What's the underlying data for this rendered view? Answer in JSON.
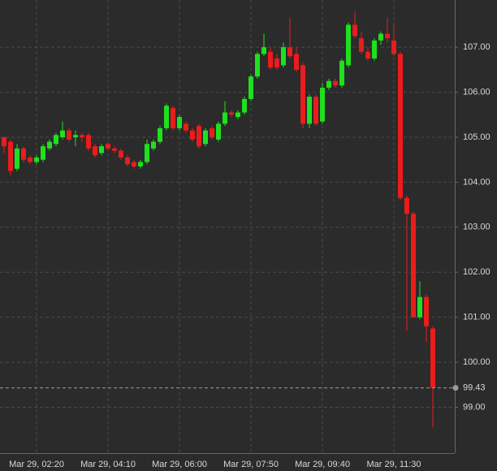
{
  "chart_data": {
    "type": "candlestick",
    "categories": [
      null,
      null,
      null,
      null,
      null,
      "Mar 29, 02:20",
      null,
      null,
      null,
      null,
      null,
      null,
      null,
      null,
      null,
      null,
      "Mar 29, 04:10",
      null,
      null,
      null,
      null,
      null,
      null,
      null,
      null,
      null,
      null,
      "Mar 29, 06:00",
      null,
      null,
      null,
      null,
      null,
      null,
      null,
      null,
      null,
      null,
      "Mar 29, 07:50",
      null,
      null,
      null,
      null,
      null,
      null,
      null,
      null,
      null,
      null,
      "Mar 29, 09:40",
      null,
      null,
      null,
      null,
      null,
      null,
      null,
      null,
      null,
      null,
      "Mar 29, 11:30",
      null,
      null,
      null,
      null,
      null,
      null
    ],
    "open": [
      105.0,
      104.9,
      104.3,
      104.75,
      104.55,
      104.45,
      104.5,
      104.75,
      104.85,
      105.0,
      105.15,
      105.0,
      105.05,
      105.05,
      104.8,
      104.65,
      104.85,
      104.75,
      104.7,
      104.55,
      104.45,
      104.35,
      104.45,
      104.75,
      104.9,
      105.2,
      105.65,
      105.2,
      105.3,
      105.15,
      105.25,
      104.85,
      105.2,
      104.95,
      105.3,
      105.55,
      105.45,
      105.55,
      105.85,
      106.35,
      106.85,
      106.9,
      106.75,
      106.6,
      107.0,
      106.85,
      106.6,
      105.3,
      105.9,
      105.35,
      106.1,
      106.25,
      106.15,
      106.6,
      107.5,
      107.2,
      106.9,
      106.75,
      107.15,
      107.3,
      107.15,
      106.85,
      103.65,
      103.3,
      101.0,
      101.45,
      100.75
    ],
    "high": [
      105.02,
      104.95,
      104.85,
      104.8,
      104.6,
      104.6,
      104.85,
      104.95,
      105.1,
      105.35,
      105.2,
      105.15,
      105.1,
      105.1,
      104.85,
      104.85,
      104.9,
      104.8,
      104.75,
      104.6,
      104.5,
      104.5,
      104.95,
      104.95,
      105.25,
      105.75,
      105.7,
      105.5,
      105.35,
      105.2,
      105.3,
      105.2,
      105.25,
      105.35,
      105.8,
      105.6,
      105.6,
      105.9,
      106.4,
      106.9,
      107.3,
      107.0,
      106.85,
      107.1,
      107.65,
      107.0,
      106.65,
      105.95,
      105.95,
      106.2,
      106.3,
      106.3,
      106.75,
      107.55,
      107.8,
      107.35,
      107.0,
      107.2,
      107.35,
      107.65,
      107.5,
      106.9,
      103.7,
      103.35,
      101.8,
      101.5,
      100.8
    ],
    "low": [
      104.65,
      104.15,
      104.25,
      104.45,
      104.4,
      104.4,
      104.45,
      104.7,
      104.8,
      104.95,
      104.9,
      104.8,
      104.9,
      104.7,
      104.55,
      104.6,
      104.7,
      104.65,
      104.5,
      104.35,
      104.3,
      104.3,
      104.4,
      104.7,
      104.85,
      105.15,
      105.15,
      105.15,
      105.1,
      104.9,
      104.75,
      104.8,
      104.95,
      104.9,
      105.25,
      105.45,
      105.4,
      105.5,
      105.8,
      106.3,
      106.8,
      106.5,
      106.5,
      106.55,
      106.75,
      106.45,
      105.2,
      105.2,
      105.25,
      105.3,
      106.05,
      106.1,
      106.1,
      106.55,
      107.2,
      106.85,
      106.7,
      106.7,
      107.05,
      107.1,
      106.8,
      103.6,
      100.7,
      101.0,
      100.95,
      100.45,
      98.55
    ],
    "close": [
      104.8,
      104.25,
      104.75,
      104.5,
      104.45,
      104.55,
      104.8,
      104.9,
      105.05,
      105.15,
      104.95,
      105.05,
      105.0,
      104.75,
      104.6,
      104.8,
      104.75,
      104.7,
      104.55,
      104.4,
      104.35,
      104.45,
      104.85,
      104.9,
      105.2,
      105.7,
      105.2,
      105.45,
      105.15,
      104.95,
      104.8,
      105.15,
      105.0,
      105.3,
      105.55,
      105.5,
      105.55,
      105.85,
      106.35,
      106.85,
      107.0,
      106.55,
      106.55,
      107.0,
      106.8,
      106.5,
      105.3,
      105.9,
      105.3,
      106.1,
      106.25,
      106.15,
      106.7,
      107.5,
      107.25,
      106.9,
      106.75,
      107.15,
      107.3,
      107.2,
      106.85,
      103.65,
      103.3,
      101.0,
      101.45,
      100.8,
      99.43
    ],
    "up_color": "#1fe01f",
    "down_color": "#ea1c1c",
    "current_price": 99.43,
    "ylim": [
      97.98,
      108.05
    ],
    "yticks": [
      {
        "value": 99,
        "label": "99.00"
      },
      {
        "value": 100,
        "label": "100.00"
      },
      {
        "value": 101,
        "label": "101.00"
      },
      {
        "value": 102,
        "label": "102.00"
      },
      {
        "value": 103,
        "label": "103.00"
      },
      {
        "value": 104,
        "label": "104.00"
      },
      {
        "value": 105,
        "label": "105.00"
      },
      {
        "value": 106,
        "label": "106.00"
      },
      {
        "value": 107,
        "label": "107.00"
      }
    ],
    "grid": true
  }
}
